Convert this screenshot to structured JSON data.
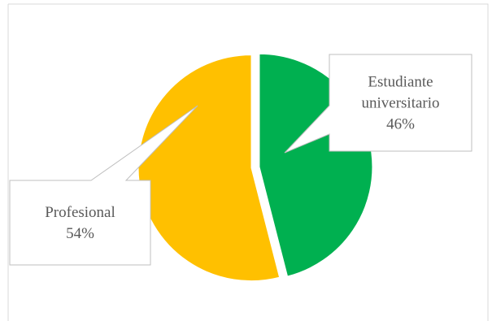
{
  "chart_data": {
    "type": "pie",
    "title": "",
    "exploded": true,
    "slices": [
      {
        "label": "Estudiante universitario",
        "label_lines": [
          "Estudiante",
          "universitario"
        ],
        "value": 46,
        "percent_label": "46%",
        "color": "#00B050"
      },
      {
        "label": "Profesional",
        "label_lines": [
          "Profesional"
        ],
        "value": 54,
        "percent_label": "54%",
        "color": "#FFC000"
      }
    ],
    "data_label_style": "callout",
    "legend": "none"
  }
}
